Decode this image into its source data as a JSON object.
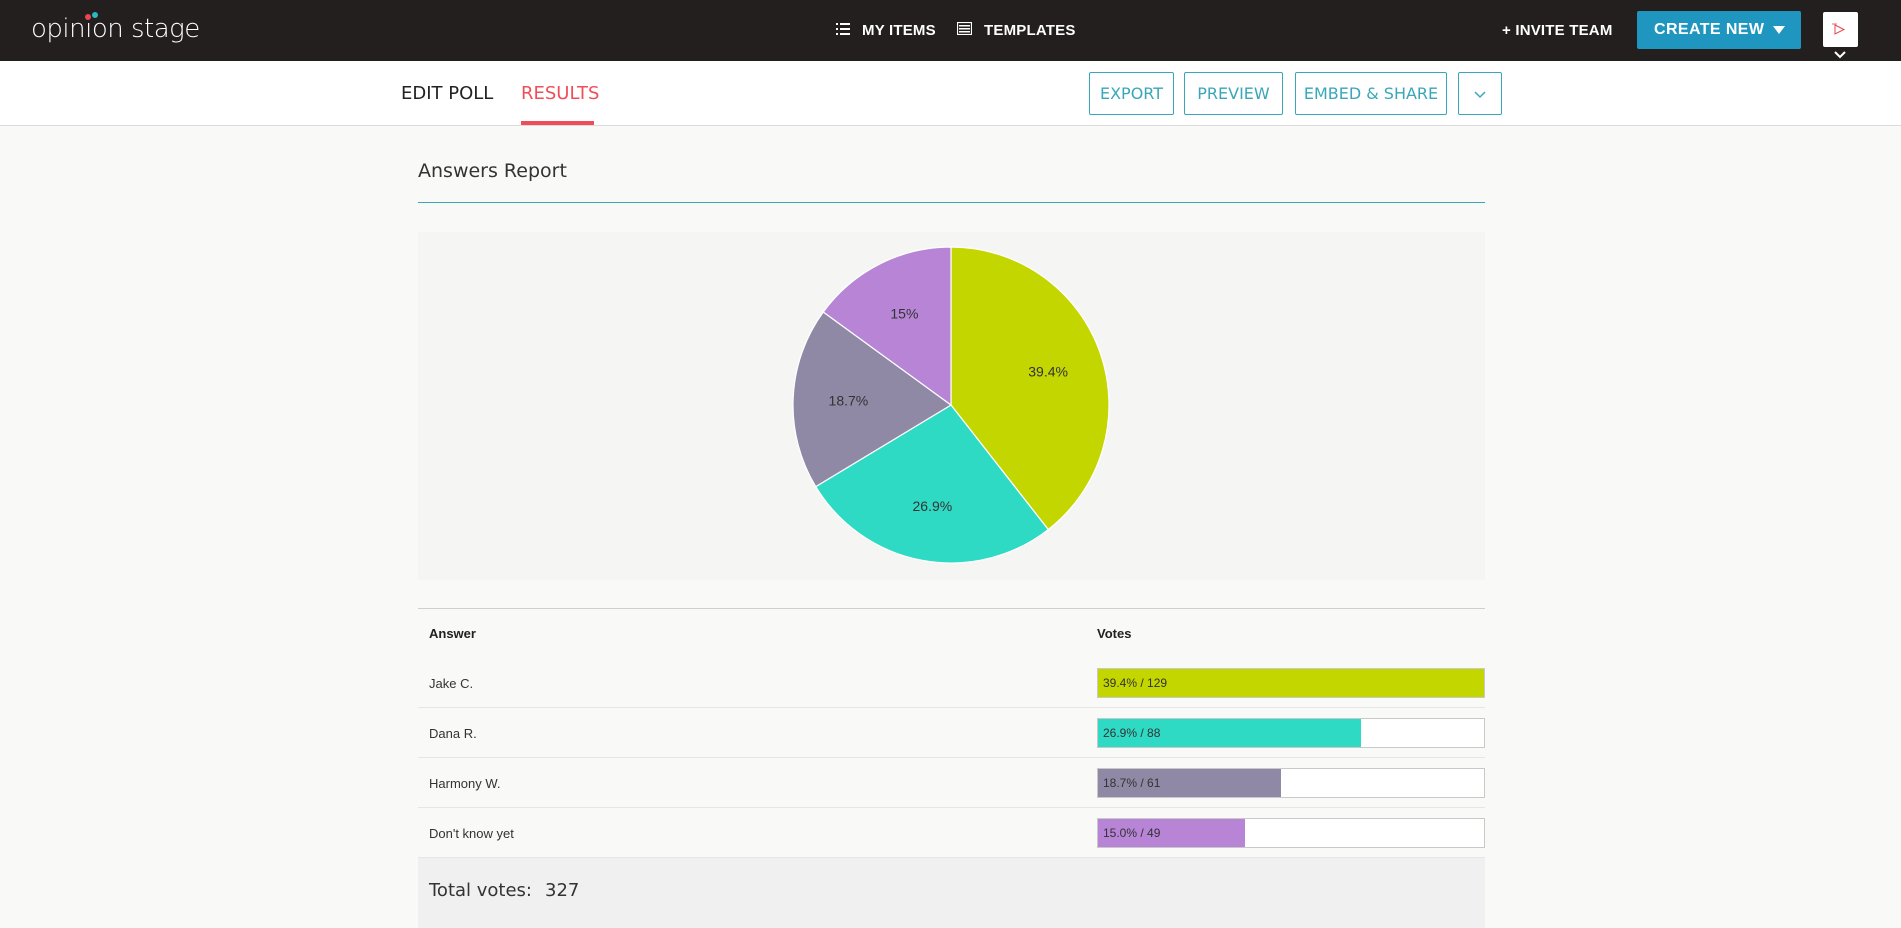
{
  "brand": {
    "logo_text": "opinion stage"
  },
  "topnav": {
    "my_items": "MY ITEMS",
    "templates": "TEMPLATES",
    "invite_team": "+ INVITE TEAM",
    "create_new": "CREATE NEW"
  },
  "tabs": {
    "edit_poll": "EDIT POLL",
    "results": "RESULTS",
    "active": "RESULTS"
  },
  "actions": {
    "export": "EXPORT",
    "preview": "PREVIEW",
    "embed_share": "EMBED & SHARE"
  },
  "report": {
    "title": "Answers Report",
    "col_answer": "Answer",
    "col_votes": "Votes",
    "rows": [
      {
        "answer": "Jake C.",
        "bar_label": "39.4% / 129"
      },
      {
        "answer": "Dana R.",
        "bar_label": "26.9% / 88"
      },
      {
        "answer": "Harmony W.",
        "bar_label": "18.7% / 61"
      },
      {
        "answer": "Don't know yet",
        "bar_label": "15.0% / 49"
      }
    ],
    "total_label": "Total votes:",
    "total_value": "327"
  },
  "chart_data": {
    "type": "pie",
    "title": "",
    "categories": [
      "Jake C.",
      "Dana R.",
      "Harmony W.",
      "Don't know yet"
    ],
    "values": [
      129,
      88,
      61,
      49
    ],
    "percent_labels": [
      "39.4%",
      "26.9%",
      "18.7%",
      "15%"
    ],
    "colors": [
      "#c4d600",
      "#2fdac5",
      "#8f89a5",
      "#b784d6"
    ]
  },
  "bar_fractions": [
    1.0,
    0.682,
    0.473,
    0.38
  ],
  "icons": {
    "my_items": "list-icon",
    "templates": "template-icon",
    "create_caret": "caret-down-icon",
    "more": "chevron-down-icon"
  }
}
